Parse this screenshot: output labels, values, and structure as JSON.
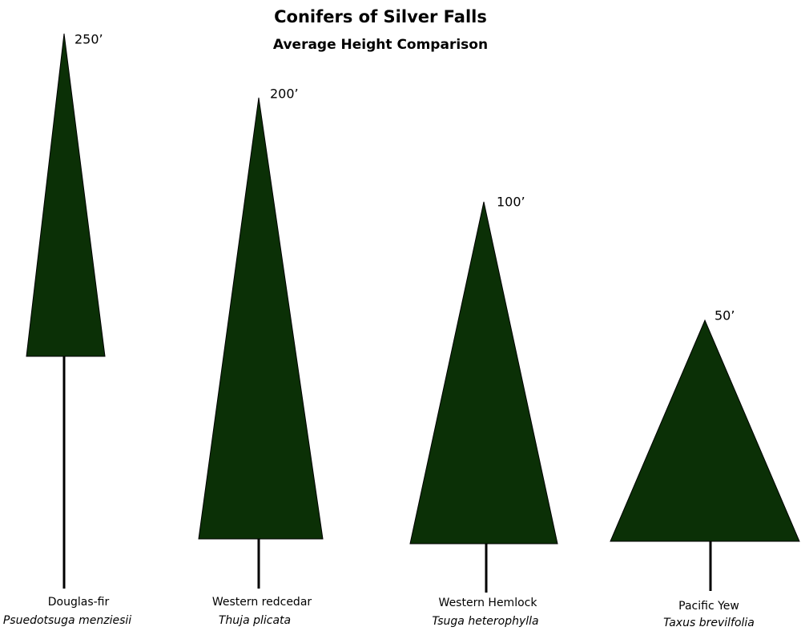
{
  "title": "Conifers of Silver Falls",
  "subtitle": "Average Height Comparison",
  "trees": [
    {
      "height_label": "250’",
      "common_name": "Douglas-fir",
      "scientific_name": "Psuedotsuga menziesii"
    },
    {
      "height_label": "200’",
      "common_name": "Western redcedar",
      "scientific_name": "Thuja plicata"
    },
    {
      "height_label": "100’",
      "common_name": "Western Hemlock",
      "scientific_name": "Tsuga heterophylla"
    },
    {
      "height_label": "50’",
      "common_name": "Pacific Yew",
      "scientific_name": "Taxus brevilfolia"
    }
  ]
}
